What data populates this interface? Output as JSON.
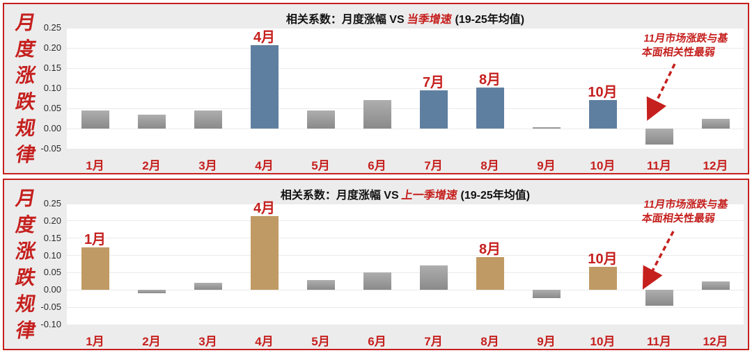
{
  "accent_color": "#c5201e",
  "panel_bg": "#ececec",
  "chart_data": [
    {
      "type": "bar",
      "title": "相关系数：月度涨幅 VS 当季增速 (19-25年均值)",
      "title_parts": {
        "prefix": "相关系数：月度涨幅 VS ",
        "highlight": "当季增速",
        "suffix": " (19-25年均值)"
      },
      "side_label": "月度涨跌规律",
      "categories": [
        "1月",
        "2月",
        "3月",
        "4月",
        "5月",
        "6月",
        "7月",
        "8月",
        "9月",
        "10月",
        "11月",
        "12月"
      ],
      "values": [
        0.045,
        0.035,
        0.045,
        0.207,
        0.045,
        0.07,
        0.095,
        0.102,
        0.002,
        0.071,
        -0.04,
        0.025
      ],
      "highlighted_categories": [
        "4月",
        "7月",
        "8月",
        "10月"
      ],
      "highlight_color": "#5f7fa0",
      "default_color": "#9a9a9a",
      "ylim": [
        -0.05,
        0.25
      ],
      "ytick_step": 0.05,
      "grid": true,
      "xlabel": "",
      "ylabel": "",
      "annotation_lines": [
        "11月市场涨跌与基",
        "本面相关性最弱"
      ],
      "annotation_target": "11月"
    },
    {
      "type": "bar",
      "title": "相关系数：月度涨幅 VS 上一季增速 (19-25年均值)",
      "title_parts": {
        "prefix": "相关系数：月度涨幅 VS ",
        "highlight": "上一季增速",
        "suffix": " (19-25年均值)"
      },
      "side_label": "月度涨跌规律",
      "categories": [
        "1月",
        "2月",
        "3月",
        "4月",
        "5月",
        "6月",
        "7月",
        "8月",
        "9月",
        "10月",
        "11月",
        "12月"
      ],
      "values": [
        0.124,
        -0.01,
        0.02,
        0.214,
        0.028,
        0.051,
        0.071,
        0.096,
        -0.024,
        0.067,
        -0.045,
        0.025
      ],
      "highlighted_categories": [
        "1月",
        "4月",
        "8月",
        "10月"
      ],
      "highlight_color": "#c09a64",
      "default_color": "#9a9a9a",
      "ylim": [
        -0.1,
        0.25
      ],
      "ytick_step": 0.05,
      "grid": true,
      "xlabel": "",
      "ylabel": "",
      "annotation_lines": [
        "11月市场涨跌与基",
        "本面相关性最弱"
      ],
      "annotation_target": "11月"
    }
  ]
}
